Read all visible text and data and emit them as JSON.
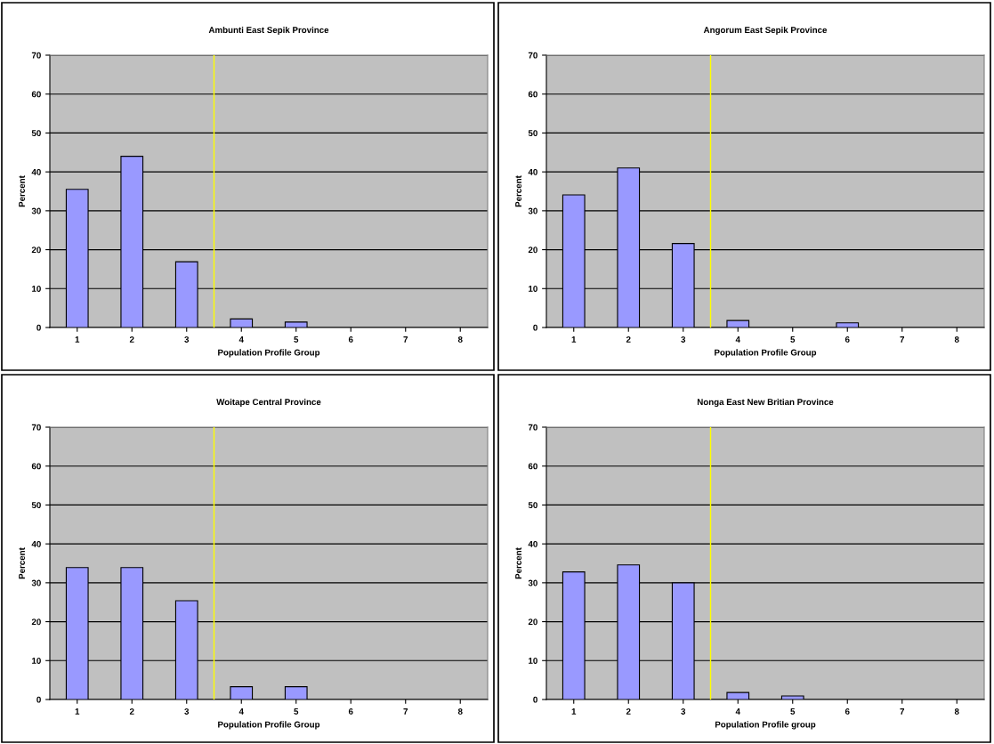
{
  "chart_data": [
    {
      "type": "bar",
      "title": "Ambunti East Sepik Province",
      "xlabel": "Population Profile Group",
      "ylabel": "Percent",
      "x": [
        1,
        2,
        3,
        4,
        5,
        6,
        7,
        8
      ],
      "values": [
        35.5,
        44,
        16.9,
        2.2,
        1.4,
        0,
        0,
        0
      ],
      "color": "#9999ff",
      "xlim": [
        0.5,
        8.5
      ],
      "xticks": [
        1,
        2,
        3,
        4,
        5,
        6,
        7,
        8
      ],
      "ylim": [
        0,
        70
      ],
      "yticks": [
        0,
        10,
        20,
        30,
        40,
        50,
        60,
        70
      ],
      "grid": "y",
      "ref_lines": [
        {
          "axis": "x",
          "value": 3.5,
          "color": "#ffff00"
        }
      ]
    },
    {
      "type": "bar",
      "title": "Angorum East Sepik Province",
      "xlabel": "Population Profile Group",
      "ylabel": "Percent",
      "x": [
        1,
        2,
        3,
        4,
        5,
        6,
        7,
        8
      ],
      "values": [
        34.1,
        41,
        21.6,
        1.8,
        0,
        1.2,
        0,
        0
      ],
      "color": "#9999ff",
      "xlim": [
        0.5,
        8.5
      ],
      "xticks": [
        1,
        2,
        3,
        4,
        5,
        6,
        7,
        8
      ],
      "ylim": [
        0,
        70
      ],
      "yticks": [
        0,
        10,
        20,
        30,
        40,
        50,
        60,
        70
      ],
      "grid": "y",
      "ref_lines": [
        {
          "axis": "x",
          "value": 3.5,
          "color": "#ffff00"
        }
      ]
    },
    {
      "type": "bar",
      "title": "Woitape Central Province",
      "xlabel": "Population Profile Group",
      "ylabel": "Percent",
      "x": [
        1,
        2,
        3,
        4,
        5,
        6,
        7,
        8
      ],
      "values": [
        33.9,
        33.9,
        25.4,
        3.3,
        3.3,
        0,
        0,
        0
      ],
      "color": "#9999ff",
      "xlim": [
        0.5,
        8.5
      ],
      "xticks": [
        1,
        2,
        3,
        4,
        5,
        6,
        7,
        8
      ],
      "ylim": [
        0,
        70
      ],
      "yticks": [
        0,
        10,
        20,
        30,
        40,
        50,
        60,
        70
      ],
      "grid": "y",
      "ref_lines": [
        {
          "axis": "x",
          "value": 3.5,
          "color": "#ffff00"
        }
      ]
    },
    {
      "type": "bar",
      "title": "Nonga East New Britian Province",
      "xlabel": "Population Profile group",
      "ylabel": "Percent",
      "x": [
        1,
        2,
        3,
        4,
        5,
        6,
        7,
        8
      ],
      "values": [
        32.8,
        34.6,
        30,
        1.8,
        0.9,
        0,
        0,
        0
      ],
      "color": "#9999ff",
      "xlim": [
        0.5,
        8.5
      ],
      "xticks": [
        1,
        2,
        3,
        4,
        5,
        6,
        7,
        8
      ],
      "ylim": [
        0,
        70
      ],
      "yticks": [
        0,
        10,
        20,
        30,
        40,
        50,
        60,
        70
      ],
      "grid": "y",
      "ref_lines": [
        {
          "axis": "x",
          "value": 3.5,
          "color": "#ffff00"
        }
      ]
    }
  ]
}
